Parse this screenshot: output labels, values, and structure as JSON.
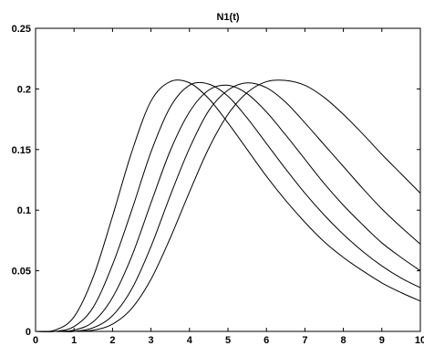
{
  "chart_data": {
    "type": "line",
    "title": "N1(t)",
    "xlabel": "",
    "ylabel": "",
    "xlim": [
      0,
      10
    ],
    "ylim": [
      0,
      0.25
    ],
    "grid": false,
    "xticks": [
      "0",
      "1",
      "2",
      "3",
      "4",
      "5",
      "6",
      "7",
      "8",
      "9",
      "10"
    ],
    "yticks": [
      "0",
      "0.05",
      "0.1",
      "0.15",
      "0.2",
      "0.25"
    ],
    "line_color": "#000000",
    "x": [
      0,
      0.5,
      1,
      1.5,
      2,
      2.5,
      3,
      3.5,
      4,
      4.5,
      5,
      5.5,
      6,
      6.5,
      7,
      7.5,
      8,
      8.5,
      9,
      9.5,
      10
    ],
    "series": [
      {
        "values": [
          0,
          0.001,
          0.012,
          0.045,
          0.095,
          0.148,
          0.19,
          0.206,
          0.205,
          0.192,
          0.172,
          0.15,
          0.128,
          0.108,
          0.09,
          0.074,
          0.061,
          0.05,
          0.04,
          0.032,
          0.025
        ]
      },
      {
        "values": [
          0,
          0.0,
          0.004,
          0.02,
          0.055,
          0.1,
          0.148,
          0.185,
          0.203,
          0.204,
          0.194,
          0.176,
          0.155,
          0.134,
          0.114,
          0.096,
          0.08,
          0.066,
          0.054,
          0.044,
          0.036
        ]
      },
      {
        "values": [
          0,
          0.0,
          0.001,
          0.008,
          0.028,
          0.062,
          0.106,
          0.149,
          0.181,
          0.199,
          0.203,
          0.196,
          0.181,
          0.162,
          0.142,
          0.122,
          0.104,
          0.088,
          0.073,
          0.061,
          0.05
        ]
      },
      {
        "values": [
          0,
          0.0,
          0.0,
          0.003,
          0.013,
          0.035,
          0.07,
          0.112,
          0.151,
          0.182,
          0.199,
          0.205,
          0.201,
          0.189,
          0.172,
          0.154,
          0.136,
          0.118,
          0.101,
          0.086,
          0.072
        ]
      },
      {
        "values": [
          0,
          0.0,
          0.0,
          0.001,
          0.006,
          0.019,
          0.043,
          0.077,
          0.115,
          0.151,
          0.179,
          0.197,
          0.206,
          0.207,
          0.203,
          0.193,
          0.179,
          0.163,
          0.146,
          0.13,
          0.114
        ]
      }
    ]
  }
}
